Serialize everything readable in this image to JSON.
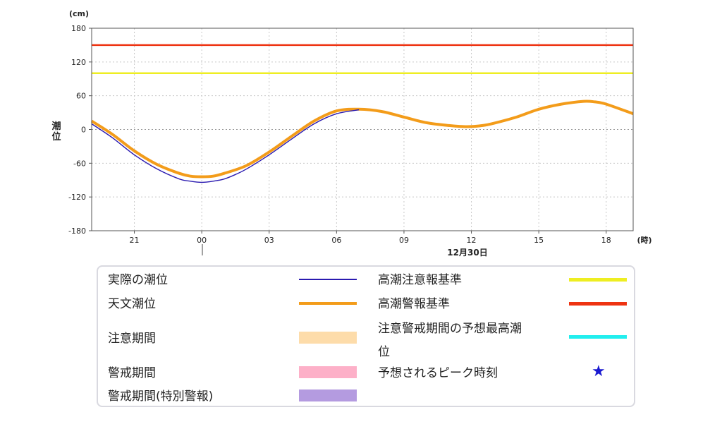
{
  "chart_data": {
    "type": "line",
    "unit": "(cm)",
    "ylabel": "潮位",
    "xunit": "(時)",
    "date_label": "12月30日",
    "ylim": [
      -180,
      180
    ],
    "yticks": [
      180,
      120,
      60,
      0,
      -60,
      -120,
      -180
    ],
    "xlim_hours": [
      -4.9,
      19.2
    ],
    "xticks": [
      {
        "hour": -3,
        "label": "21"
      },
      {
        "hour": 0,
        "label": "00"
      },
      {
        "hour": 3,
        "label": "03"
      },
      {
        "hour": 6,
        "label": "06"
      },
      {
        "hour": 9,
        "label": "09"
      },
      {
        "hour": 12,
        "label": "12"
      },
      {
        "hour": 15,
        "label": "15"
      },
      {
        "hour": 18,
        "label": "18"
      }
    ],
    "thresholds": [
      {
        "name": "高潮警報基準",
        "value": 150,
        "color": "#ee3311"
      },
      {
        "name": "高潮注意報基準",
        "value": 100,
        "color": "#eeee22"
      }
    ],
    "series": [
      {
        "name": "天文潮位",
        "color": "#f39c1a",
        "x": [
          -4.9,
          -4,
          -3,
          -2,
          -1,
          -0.5,
          0,
          0.5,
          1,
          2,
          3,
          4,
          5,
          6,
          7,
          8,
          9,
          10,
          11,
          11.8,
          12.5,
          13,
          14,
          15,
          16,
          17,
          17.5,
          18,
          19.2
        ],
        "y": [
          15,
          -8,
          -38,
          -62,
          -78,
          -83,
          -84,
          -83,
          -78,
          -64,
          -40,
          -12,
          15,
          33,
          36,
          32,
          22,
          12,
          7,
          5,
          7,
          11,
          22,
          36,
          45,
          50,
          49,
          45,
          28
        ]
      },
      {
        "name": "実際の潮位",
        "color": "#2a1ab0",
        "x": [
          -4.9,
          -4,
          -3,
          -2,
          -1,
          -0.5,
          0,
          0.5,
          1,
          1.5,
          2,
          3,
          4,
          5,
          6,
          7
        ],
        "y": [
          10,
          -14,
          -45,
          -70,
          -88,
          -92,
          -94,
          -92,
          -88,
          -80,
          -70,
          -45,
          -17,
          10,
          28,
          35
        ]
      }
    ]
  },
  "legend": {
    "actual": "実際の潮位",
    "astronomical": "天文潮位",
    "caution_period": "注意期間",
    "warning_period": "警戒期間",
    "special_warning_period": "警戒期間(特別警報)",
    "advisory_standard": "高潮注意報基準",
    "warning_standard": "高潮警報基準",
    "forecast_peak_line1": "注意警戒期間の予想最高潮",
    "forecast_peak_line2": "位",
    "peak_time": "予想されるピーク時刻",
    "star_symbol": "★",
    "colors": {
      "actual": "#2a1ab0",
      "astronomical": "#f39c1a",
      "caution": "#fddcaa",
      "warning": "#fdb0c8",
      "special": "#b49be0",
      "advisory": "#eeee22",
      "warning_line": "#ee3311",
      "forecast_peak": "#22eeee",
      "star": "#1a1ad0"
    }
  }
}
